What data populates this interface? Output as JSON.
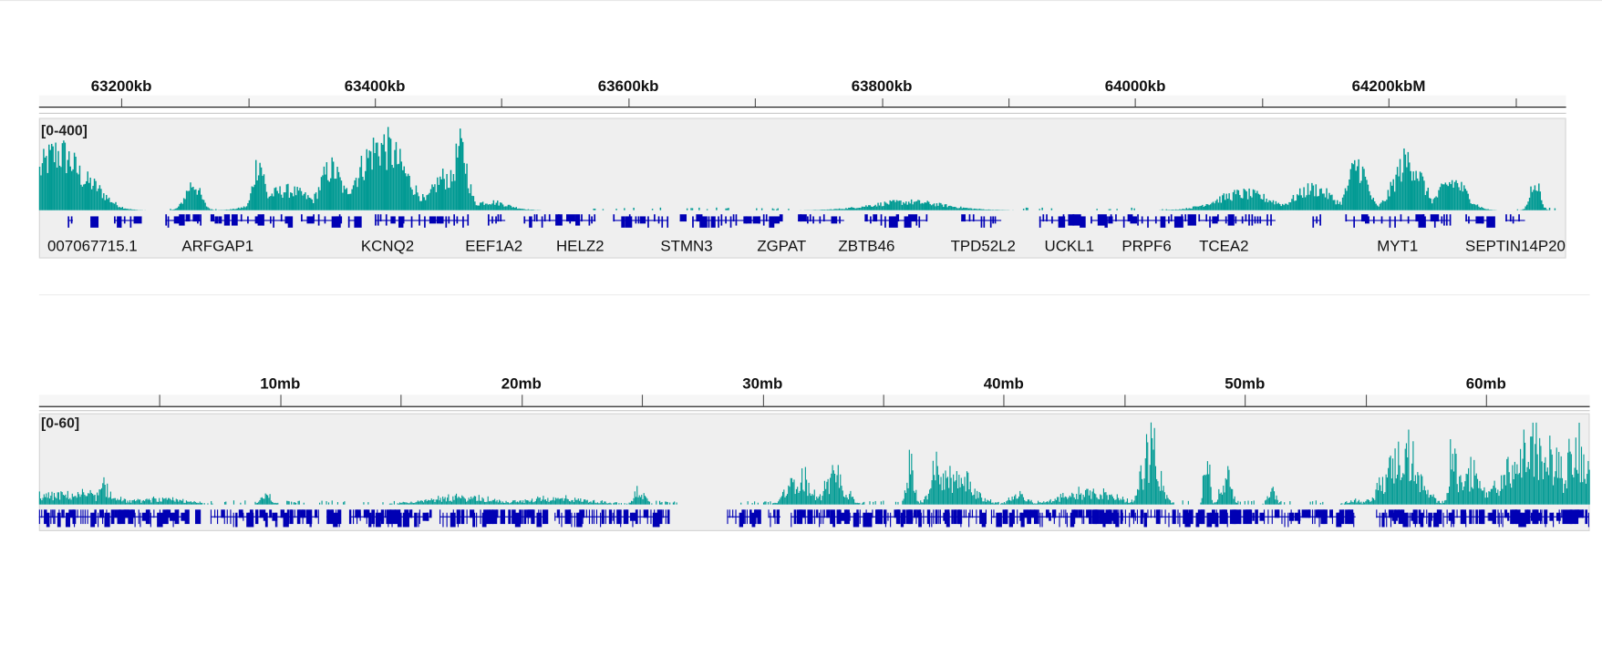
{
  "colors": {
    "coverage": "#009a93",
    "gene": "#0000b4",
    "panel_bg": "#efefef"
  },
  "top_view": {
    "ruler": {
      "unit": "kb",
      "start_kb": 63135,
      "end_kb": 64340,
      "labels": [
        {
          "text": "63200kb",
          "pos": 63200
        },
        {
          "text": "63400kb",
          "pos": 63400
        },
        {
          "text": "63600kb",
          "pos": 63600
        },
        {
          "text": "63800kb",
          "pos": 63800
        },
        {
          "text": "64000kb",
          "pos": 64000
        },
        {
          "text": "64200kbM",
          "pos": 64200
        }
      ],
      "ticks": [
        63200,
        63300,
        63400,
        63500,
        63600,
        63700,
        63800,
        63900,
        64000,
        64100,
        64200,
        64300
      ]
    },
    "coverage_track": {
      "range_label": "[0-400]",
      "max": 400,
      "peaks": [
        {
          "pos": 63150,
          "value": 345,
          "width": 25
        },
        {
          "pos": 63170,
          "value": 180,
          "width": 20
        },
        {
          "pos": 63256,
          "value": 160,
          "width": 8
        },
        {
          "pos": 63308,
          "value": 300,
          "width": 6
        },
        {
          "pos": 63330,
          "value": 120,
          "width": 25
        },
        {
          "pos": 63365,
          "value": 250,
          "width": 12
        },
        {
          "pos": 63405,
          "value": 390,
          "width": 25
        },
        {
          "pos": 63455,
          "value": 200,
          "width": 14
        },
        {
          "pos": 63467,
          "value": 370,
          "width": 8
        },
        {
          "pos": 63490,
          "value": 50,
          "width": 20
        },
        {
          "pos": 63820,
          "value": 50,
          "width": 40
        },
        {
          "pos": 64085,
          "value": 100,
          "width": 30
        },
        {
          "pos": 64140,
          "value": 130,
          "width": 20
        },
        {
          "pos": 64175,
          "value": 275,
          "width": 10
        },
        {
          "pos": 64215,
          "value": 300,
          "width": 15
        },
        {
          "pos": 64250,
          "value": 170,
          "width": 15
        },
        {
          "pos": 64315,
          "value": 190,
          "width": 5
        }
      ]
    },
    "genes": [
      {
        "name": "007067715.1",
        "pos": 63177
      },
      {
        "name": "ARFGAP1",
        "pos": 63276
      },
      {
        "name": "KCNQ2",
        "pos": 63410
      },
      {
        "name": "EEF1A2",
        "pos": 63494
      },
      {
        "name": "HELZ2",
        "pos": 63562
      },
      {
        "name": "STMN3",
        "pos": 63646
      },
      {
        "name": "ZGPAT",
        "pos": 63721
      },
      {
        "name": "ZBTB46",
        "pos": 63788
      },
      {
        "name": "TPD52L2",
        "pos": 63880
      },
      {
        "name": "UCKL1",
        "pos": 63948
      },
      {
        "name": "PRPF6",
        "pos": 64009
      },
      {
        "name": "TCEA2",
        "pos": 64070
      },
      {
        "name": "MYT1",
        "pos": 64207
      },
      {
        "name": "SEPTIN14P20",
        "pos": 64300
      }
    ]
  },
  "bottom_view": {
    "ruler": {
      "unit": "mb",
      "start_mb": 0,
      "end_mb": 64.3,
      "labels": [
        {
          "text": "10mb",
          "pos": 10
        },
        {
          "text": "20mb",
          "pos": 20
        },
        {
          "text": "30mb",
          "pos": 30
        },
        {
          "text": "40mb",
          "pos": 40
        },
        {
          "text": "50mb",
          "pos": 50
        },
        {
          "text": "60mb",
          "pos": 60
        }
      ],
      "ticks": [
        5,
        10,
        15,
        20,
        25,
        30,
        35,
        40,
        45,
        50,
        55,
        60
      ]
    },
    "coverage_track": {
      "range_label": "[0-60]",
      "max": 60,
      "peaks": [
        {
          "pos": 1.2,
          "value": 12,
          "width": 2.5
        },
        {
          "pos": 2.7,
          "value": 20,
          "width": 0.4
        },
        {
          "pos": 5.0,
          "value": 6,
          "width": 1.5
        },
        {
          "pos": 9.4,
          "value": 10,
          "width": 0.3
        },
        {
          "pos": 17.5,
          "value": 8,
          "width": 2
        },
        {
          "pos": 21.5,
          "value": 7,
          "width": 2
        },
        {
          "pos": 24.9,
          "value": 16,
          "width": 0.3
        },
        {
          "pos": 31.5,
          "value": 33,
          "width": 0.6
        },
        {
          "pos": 33.0,
          "value": 30,
          "width": 0.6
        },
        {
          "pos": 36.1,
          "value": 50,
          "width": 0.2
        },
        {
          "pos": 37.2,
          "value": 50,
          "width": 0.3
        },
        {
          "pos": 38.0,
          "value": 30,
          "width": 1.0
        },
        {
          "pos": 40.6,
          "value": 10,
          "width": 0.5
        },
        {
          "pos": 43.5,
          "value": 14,
          "width": 1.5
        },
        {
          "pos": 46.1,
          "value": 60,
          "width": 0.5
        },
        {
          "pos": 48.4,
          "value": 60,
          "width": 0.15
        },
        {
          "pos": 49.2,
          "value": 30,
          "width": 0.3
        },
        {
          "pos": 51.1,
          "value": 20,
          "width": 0.2
        },
        {
          "pos": 54.5,
          "value": 6,
          "width": 0.4
        },
        {
          "pos": 56.5,
          "value": 60,
          "width": 0.9
        },
        {
          "pos": 58.6,
          "value": 60,
          "width": 0.2
        },
        {
          "pos": 59.3,
          "value": 35,
          "width": 0.7
        },
        {
          "pos": 62.0,
          "value": 60,
          "width": 1.5
        },
        {
          "pos": 63.8,
          "value": 60,
          "width": 0.8
        }
      ]
    }
  }
}
